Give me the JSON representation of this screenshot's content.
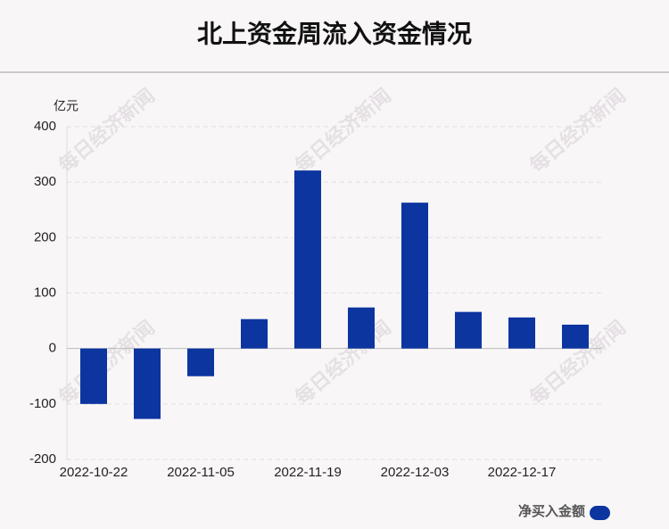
{
  "chart_data": {
    "type": "bar",
    "title": "北上资金周流入资金情况",
    "y_unit": "亿元",
    "categories": [
      "2022-10-22",
      null,
      "2022-11-05",
      null,
      "2022-11-19",
      null,
      "2022-12-03",
      null,
      "2022-12-17",
      null
    ],
    "series": [
      {
        "name": "净买入金额",
        "color": "#0d35a0",
        "values": [
          -100,
          -127,
          -50,
          53,
          321,
          74,
          263,
          66,
          56,
          43
        ]
      }
    ],
    "ylim": [
      -200,
      400
    ],
    "yticks": [
      -200,
      -100,
      0,
      100,
      200,
      300,
      400
    ],
    "grid": true,
    "legend": "bottom-right",
    "watermark": "每日经济新闻"
  }
}
